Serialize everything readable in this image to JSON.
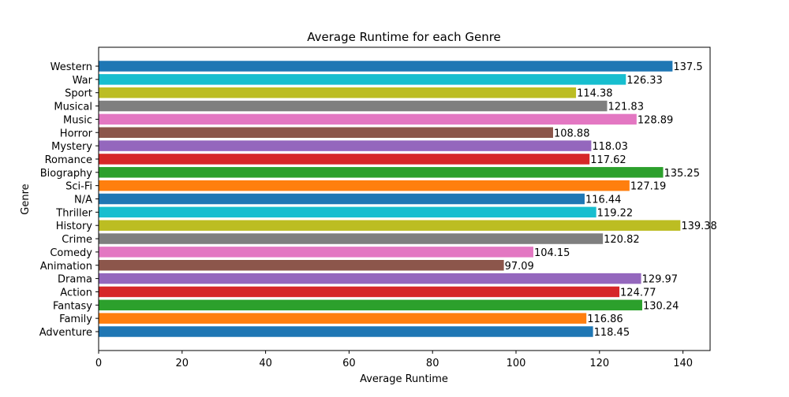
{
  "chart_data": {
    "type": "bar",
    "orientation": "horizontal",
    "title": "Average Runtime for each Genre",
    "xlabel": "Average Runtime",
    "ylabel": "Genre",
    "xlim": [
      0,
      146.5
    ],
    "xticks": [
      0,
      20,
      40,
      60,
      80,
      100,
      120,
      140
    ],
    "grid": false,
    "categories": [
      "Adventure",
      "Family",
      "Fantasy",
      "Action",
      "Drama",
      "Animation",
      "Comedy",
      "Crime",
      "History",
      "Thriller",
      "N/A",
      "Sci-Fi",
      "Biography",
      "Romance",
      "Mystery",
      "Horror",
      "Music",
      "Musical",
      "Sport",
      "War",
      "Western"
    ],
    "values": [
      118.45,
      116.86,
      130.24,
      124.77,
      129.97,
      97.09,
      104.15,
      120.82,
      139.38,
      119.22,
      116.44,
      127.19,
      135.25,
      117.62,
      118.03,
      108.88,
      128.89,
      121.83,
      114.38,
      126.33,
      137.5
    ],
    "value_labels": [
      "118.45",
      "116.86",
      "130.24",
      "124.77",
      "129.97",
      "97.09",
      "104.15",
      "120.82",
      "139.38",
      "119.22",
      "116.44",
      "127.19",
      "135.25",
      "117.62",
      "118.03",
      "108.88",
      "128.89",
      "121.83",
      "114.38",
      "126.33",
      "137.5"
    ],
    "colors": [
      "#1f77b4",
      "#ff7f0e",
      "#2ca02c",
      "#d62728",
      "#9467bd",
      "#8c564b",
      "#e377c2",
      "#7f7f7f",
      "#bcbd22",
      "#17becf",
      "#1f77b4",
      "#ff7f0e",
      "#2ca02c",
      "#d62728",
      "#9467bd",
      "#8c564b",
      "#e377c2",
      "#7f7f7f",
      "#bcbd22",
      "#17becf",
      "#1f77b4"
    ]
  }
}
